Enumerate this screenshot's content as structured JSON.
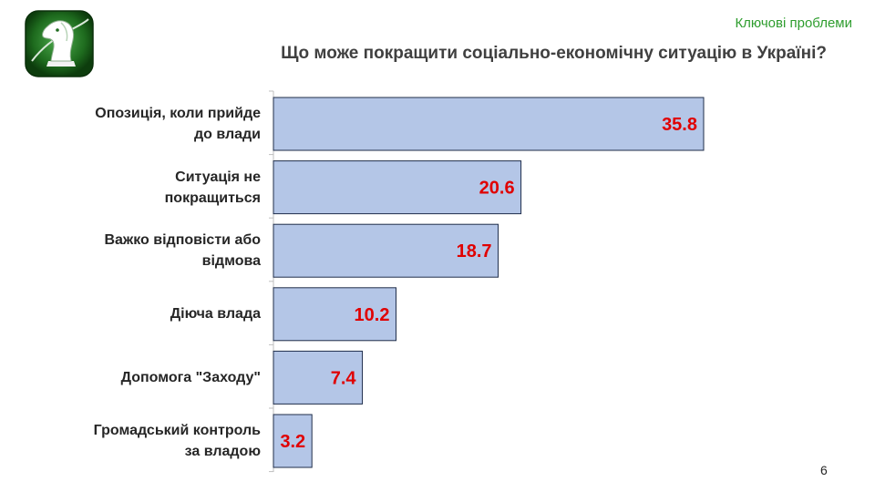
{
  "header": {
    "section_label": "Ключові проблеми",
    "question": "Що може покращити соціально-економічну ситуацію в Україні?"
  },
  "page_number": "6",
  "colors": {
    "bar_fill": "#b4c6e7",
    "bar_stroke": "#1f2d4a",
    "value_label": "#e00000",
    "section_label": "#2e9d2e",
    "logo_green": "#1e6b1e"
  },
  "logo": {
    "icon": "knight-chess-piece-logo"
  },
  "chart_data": {
    "type": "bar",
    "orientation": "horizontal",
    "categories": [
      "Опозиція, коли прийде\nдо влади",
      "Ситуація не\nпокращиться",
      "Важко відповісти або\nвідмова",
      "Діюча влада",
      "Допомога \"Заходу\"",
      "Громадський контроль\nза владою"
    ],
    "values": [
      35.8,
      20.6,
      18.7,
      10.2,
      7.4,
      3.2
    ],
    "value_labels": [
      "35.8",
      "20.6",
      "18.7",
      "10.2",
      "7.4",
      "3.2"
    ],
    "xlim": [
      0,
      36.5
    ],
    "grid": false,
    "legend": "none"
  }
}
